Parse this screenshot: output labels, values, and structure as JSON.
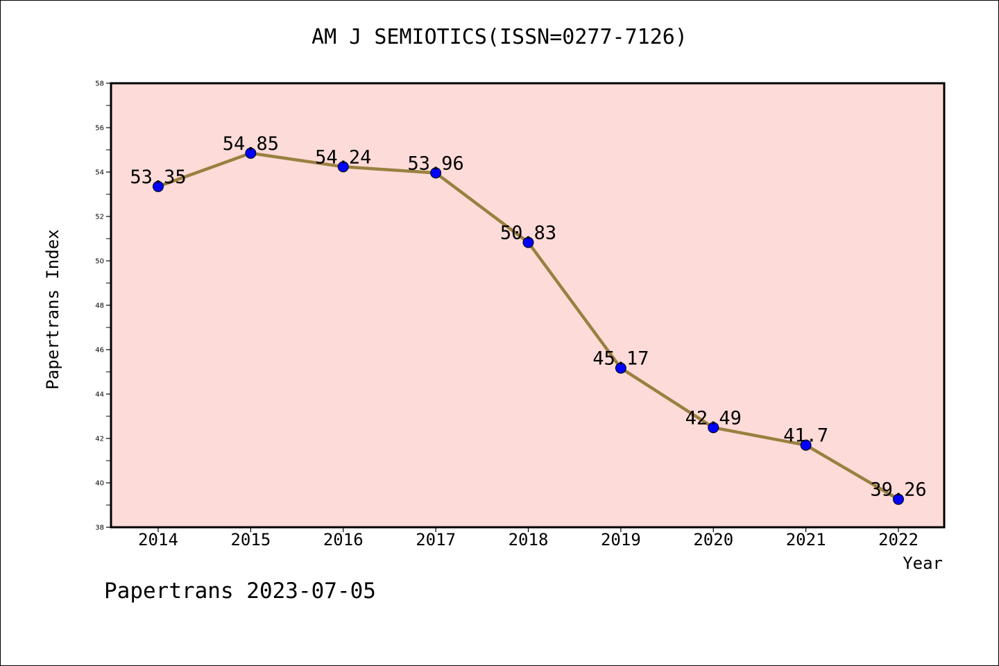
{
  "chart_data": {
    "type": "line",
    "title": "AM J SEMIOTICS(ISSN=0277-7126)",
    "xlabel": "Year",
    "ylabel": "Papertrans Index",
    "categories": [
      "2014",
      "2015",
      "2016",
      "2017",
      "2018",
      "2019",
      "2020",
      "2021",
      "2022"
    ],
    "series": [
      {
        "values": [
          53.35,
          54.85,
          54.24,
          53.96,
          50.83,
          45.17,
          42.49,
          41.7,
          39.26
        ],
        "labels": [
          "53.35",
          "54.85",
          "54.24",
          "53.96",
          "50.83",
          "45.17",
          "42.49",
          "41.7",
          "39.26"
        ],
        "line_color": "#9a8040",
        "marker_color": "#0000ff"
      }
    ],
    "ylim": [
      38,
      58
    ],
    "yticks": [
      "38",
      "40",
      "42",
      "44",
      "46",
      "48",
      "50",
      "52",
      "54",
      "56",
      "58"
    ],
    "plot_background": "#fddbd8",
    "grid": false,
    "legend": "none"
  },
  "footer": {
    "text": "Papertrans 2023-07-05"
  }
}
